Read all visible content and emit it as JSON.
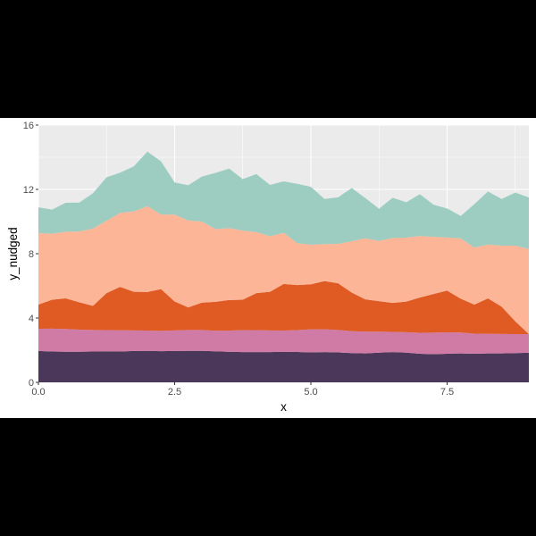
{
  "chart_data": {
    "type": "area",
    "stacked": true,
    "xlabel": "x",
    "ylabel": "y_nudged",
    "xlim": [
      0,
      9
    ],
    "ylim": [
      0,
      16
    ],
    "x_ticks": [
      0,
      2.5,
      5,
      7.5
    ],
    "x_tick_labels": [
      "0.0",
      "2.5",
      "5.0",
      "7.5"
    ],
    "y_ticks": [
      0,
      4,
      8,
      12,
      16
    ],
    "y_tick_labels": [
      "0",
      "4",
      "8",
      "12",
      "16"
    ],
    "grid": true,
    "panel_background": "#ebebeb",
    "grid_color": "#ffffff",
    "legend": "none",
    "x": [
      0,
      0.25,
      0.5,
      0.75,
      1,
      1.25,
      1.5,
      1.75,
      2,
      2.25,
      2.5,
      2.75,
      3,
      3.25,
      3.5,
      3.75,
      4,
      4.25,
      4.5,
      4.75,
      5,
      5.25,
      5.5,
      5.75,
      6,
      6.25,
      6.5,
      6.75,
      7,
      7.25,
      7.5,
      7.75,
      8,
      8.25,
      8.5,
      8.75,
      9
    ],
    "series_bottom_to_top": [
      {
        "color": "#4b3759",
        "values": [
          1.95,
          1.92,
          1.9,
          1.9,
          1.92,
          1.93,
          1.92,
          1.95,
          1.96,
          1.94,
          1.95,
          1.96,
          1.96,
          1.93,
          1.9,
          1.88,
          1.88,
          1.88,
          1.9,
          1.89,
          1.86,
          1.88,
          1.86,
          1.82,
          1.8,
          1.85,
          1.88,
          1.85,
          1.78,
          1.75,
          1.78,
          1.8,
          1.78,
          1.8,
          1.8,
          1.82,
          1.84
        ]
      },
      {
        "color": "#cf7ba6",
        "values": [
          1.38,
          1.42,
          1.42,
          1.38,
          1.34,
          1.32,
          1.32,
          1.28,
          1.26,
          1.26,
          1.28,
          1.3,
          1.3,
          1.28,
          1.32,
          1.36,
          1.37,
          1.35,
          1.32,
          1.36,
          1.44,
          1.42,
          1.4,
          1.36,
          1.36,
          1.3,
          1.26,
          1.27,
          1.3,
          1.34,
          1.33,
          1.3,
          1.25,
          1.22,
          1.21,
          1.18,
          1.16
        ]
      },
      {
        "color": "#e05a24",
        "values": [
          1.5,
          1.8,
          1.9,
          1.7,
          1.5,
          2.3,
          2.7,
          2.4,
          2.4,
          2.6,
          1.8,
          1.4,
          1.7,
          1.8,
          1.9,
          1.9,
          2.3,
          2.4,
          2.9,
          2.8,
          2.8,
          3.0,
          2.9,
          2.4,
          2.0,
          1.9,
          1.8,
          1.9,
          2.2,
          2.4,
          2.6,
          2.1,
          1.8,
          2.2,
          1.7,
          0.8,
          0.0
        ]
      },
      {
        "color": "#fdb597",
        "values": [
          4.45,
          4.1,
          4.15,
          4.4,
          4.8,
          4.5,
          4.6,
          5.0,
          5.33,
          4.64,
          5.4,
          5.4,
          5.04,
          4.52,
          4.47,
          4.3,
          3.8,
          3.45,
          3.18,
          2.6,
          2.46,
          2.3,
          2.45,
          3.2,
          3.8,
          3.75,
          4.04,
          3.98,
          3.82,
          3.56,
          3.3,
          3.75,
          3.55,
          3.35,
          3.79,
          4.7,
          5.3
        ]
      },
      {
        "color": "#9dcdc1",
        "values": [
          1.6,
          1.5,
          1.8,
          1.8,
          2.2,
          2.7,
          2.5,
          2.8,
          3.4,
          3.3,
          2.0,
          2.2,
          2.8,
          3.5,
          3.7,
          3.2,
          3.6,
          3.2,
          3.2,
          3.7,
          3.6,
          2.8,
          2.9,
          3.3,
          2.5,
          2.0,
          2.5,
          2.2,
          2.6,
          2.0,
          1.8,
          1.4,
          2.7,
          3.3,
          2.9,
          3.3,
          3.2
        ]
      }
    ]
  }
}
